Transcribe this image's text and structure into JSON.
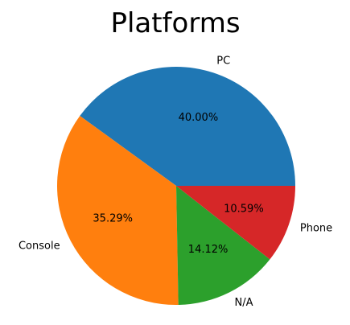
{
  "chart_data": {
    "type": "pie",
    "title": "Platforms",
    "start_angle_deg": 0,
    "direction": "counterclockwise",
    "slices": [
      {
        "label": "PC",
        "percent": 40.0,
        "percent_label": "40.00%",
        "color": "#1f77b4"
      },
      {
        "label": "Console",
        "percent": 35.29,
        "percent_label": "35.29%",
        "color": "#ff7f0e"
      },
      {
        "label": "N/A",
        "percent": 14.12,
        "percent_label": "14.12%",
        "color": "#2ca02c"
      },
      {
        "label": "Phone",
        "percent": 10.59,
        "percent_label": "10.59%",
        "color": "#d62728"
      }
    ]
  }
}
